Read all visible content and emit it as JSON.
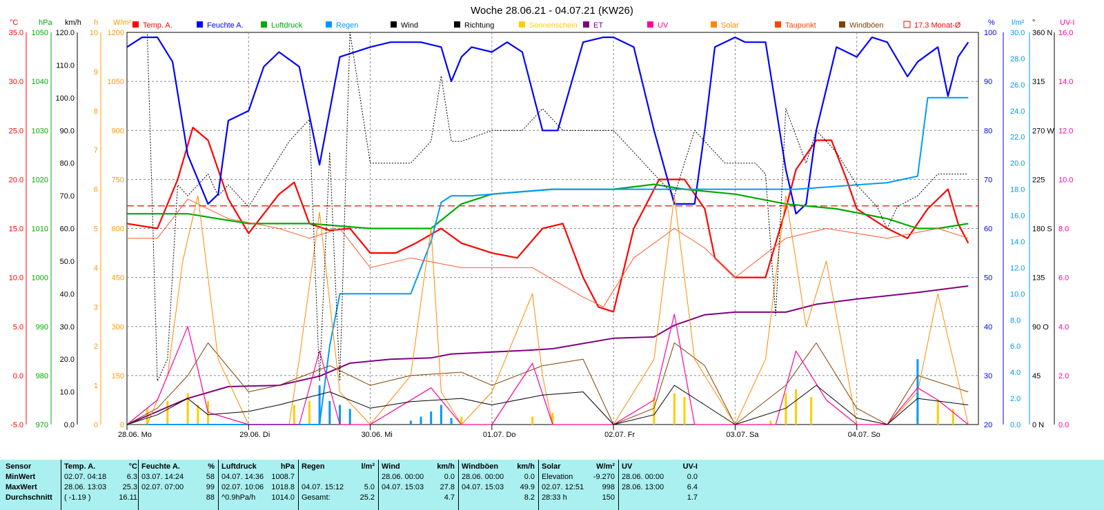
{
  "title": "Woche 28.06.21 - 04.07.21 (KW26)",
  "legend": [
    {
      "label": "Temp. A.",
      "color": "#ff0000"
    },
    {
      "label": "Feuchte A.",
      "color": "#0000ff"
    },
    {
      "label": "Luftdruck",
      "color": "#00aa00"
    },
    {
      "label": "Regen",
      "color": "#0099ff"
    },
    {
      "label": "Wind",
      "color": "#000000"
    },
    {
      "label": "Richtung",
      "color": "#000000"
    },
    {
      "label": "Sonnenschein",
      "color": "#ffcc00"
    },
    {
      "label": "ET",
      "color": "#800080"
    },
    {
      "label": "UV",
      "color": "#ff0099"
    },
    {
      "label": "Solar",
      "color": "#ff8800"
    },
    {
      "label": "Taupunkt",
      "color": "#ff4400"
    },
    {
      "label": "Windböen",
      "color": "#804000"
    },
    {
      "label": "17.3 Monat-Ø",
      "color": "#ff0000"
    }
  ],
  "axes": {
    "temp": {
      "unit": "°C",
      "ticks": [
        "35.0",
        "30.0",
        "25.0",
        "20.0",
        "15.0",
        "10.0",
        "5.0",
        "0.0",
        "-5.0"
      ],
      "color": "#ff0000"
    },
    "press": {
      "unit": "hPa",
      "ticks": [
        "1050",
        "1040",
        "1030",
        "1020",
        "1010",
        "1000",
        "990",
        "980",
        "970"
      ],
      "color": "#00aa00"
    },
    "wind": {
      "unit": "km/h",
      "ticks": [
        "120.0",
        "110.0",
        "100.0",
        "90.0",
        "80.0",
        "70.0",
        "60.0",
        "50.0",
        "40.0",
        "30.0",
        "20.0",
        "10.0",
        "0.0"
      ],
      "color": "#000000"
    },
    "sun": {
      "unit": "h",
      "ticks": [
        "10",
        "9",
        "8",
        "7",
        "6",
        "5",
        "4",
        "3",
        "2",
        "1",
        "0"
      ],
      "color": "#ff9900"
    },
    "solar": {
      "unit": "W/m²",
      "ticks": [
        "1200",
        "1050",
        "900",
        "750",
        "600",
        "450",
        "300",
        "150",
        "0"
      ],
      "color": "#ff9900"
    },
    "hum": {
      "unit": "%",
      "ticks": [
        "100",
        "90",
        "80",
        "70",
        "60",
        "50",
        "40",
        "30",
        "20"
      ],
      "color": "#0000ff"
    },
    "rain": {
      "unit": "l/m²",
      "ticks": [
        "30.0",
        "28.0",
        "26.0",
        "24.0",
        "22.0",
        "20.0",
        "18.0",
        "16.0",
        "14.0",
        "12.0",
        "10.0",
        "8.0",
        "6.0",
        "4.0",
        "2.0",
        "0.0"
      ],
      "color": "#0099ff"
    },
    "dir": {
      "unit": "°",
      "ticks": [
        "360 N",
        "315",
        "270 W",
        "225",
        "180 S",
        "135",
        "90 O",
        "45",
        "0 N"
      ],
      "color": "#000000"
    },
    "uv": {
      "unit": "UV-I",
      "ticks": [
        "16.0",
        "14.0",
        "12.0",
        "10.0",
        "8.0",
        "6.0",
        "4.0",
        "2.0",
        "0.0"
      ],
      "color": "#ff0099"
    }
  },
  "days": [
    "28.06.  Mo",
    "29.06.  Di",
    "30.06.  Mi",
    "01.07.  Do",
    "02.07.  Fr",
    "03.07.  Sa",
    "04.07.  So"
  ],
  "chart_data": {
    "type": "line",
    "title": "Woche 28.06.21 - 04.07.21 (KW26)",
    "x_unit": "hours since 28.06. 00:00",
    "series": [
      {
        "name": "Temp. A.",
        "unit": "°C",
        "x": [
          0,
          6,
          10,
          13,
          16,
          20,
          24,
          30,
          33,
          36,
          40,
          44,
          48,
          53,
          57,
          62,
          66,
          72,
          77,
          82,
          86,
          90,
          93,
          96,
          100,
          105,
          110,
          114,
          116,
          120,
          126,
          130,
          132,
          136,
          139,
          142,
          144,
          150,
          154,
          158,
          162,
          164,
          166
        ],
        "y": [
          15.5,
          15,
          20,
          25.3,
          24,
          18,
          14.5,
          18.5,
          19.7,
          15.5,
          14.8,
          15,
          12.5,
          12.5,
          13.5,
          15,
          13.5,
          12.5,
          12,
          15,
          15.5,
          10,
          7,
          6.5,
          15,
          20,
          20,
          17,
          12,
          10,
          10,
          17,
          21,
          24,
          24,
          20,
          17,
          15,
          14,
          17,
          19,
          15.5,
          13.5
        ]
      },
      {
        "name": "Feuchte A.",
        "unit": "%",
        "x": [
          0,
          3,
          6,
          9,
          12,
          16,
          18,
          20,
          24,
          27,
          30,
          34,
          36,
          38,
          42,
          48,
          52,
          58,
          62,
          64,
          66,
          68,
          72,
          75,
          78,
          82,
          85,
          90,
          94,
          96,
          100,
          104,
          108,
          112,
          114,
          116,
          120,
          122,
          126,
          130,
          132,
          134,
          136,
          140,
          144,
          147,
          150,
          154,
          156,
          160,
          162,
          164,
          166
        ],
        "y": [
          97,
          99,
          99,
          94,
          75,
          65,
          67,
          82,
          84,
          93,
          96,
          93,
          83,
          73,
          95,
          97,
          98,
          98,
          97,
          90,
          95,
          97,
          96,
          98,
          96,
          80,
          80,
          98,
          99,
          99,
          97,
          80,
          65,
          65,
          80,
          97,
          99,
          98,
          98,
          72,
          63,
          65,
          80,
          97,
          95,
          99,
          98,
          91,
          94,
          97,
          87,
          95,
          98
        ]
      },
      {
        "name": "Luftdruck",
        "unit": "hPa",
        "x": [
          0,
          12,
          24,
          36,
          48,
          60,
          66,
          72,
          84,
          96,
          104,
          110,
          120,
          130,
          140,
          150,
          156,
          160,
          166
        ],
        "y": [
          1013,
          1013,
          1011,
          1011,
          1010,
          1010,
          1015,
          1017,
          1018,
          1018,
          1019,
          1018,
          1017,
          1015,
          1014,
          1012,
          1010,
          1010,
          1011
        ]
      },
      {
        "name": "Regen",
        "unit": "l/m²",
        "x": [
          0,
          38,
          40,
          42,
          44,
          56,
          60,
          62,
          64,
          68,
          84,
          96,
          110,
          132,
          150,
          156,
          158,
          160,
          166
        ],
        "y": [
          0,
          0,
          6,
          10,
          10,
          10,
          14,
          17,
          17.5,
          17.5,
          18,
          18,
          18,
          18,
          18.5,
          19,
          25,
          25,
          25
        ]
      },
      {
        "name": "ET",
        "unit": "mm",
        "x": [
          0,
          12,
          20,
          30,
          38,
          44,
          52,
          60,
          64,
          80,
          84,
          90,
          96,
          104,
          108,
          114,
          120,
          130,
          136,
          144,
          156,
          166
        ],
        "y": [
          0,
          20,
          29,
          30,
          37,
          47,
          50,
          51,
          54,
          57,
          58,
          62,
          66,
          67,
          76,
          84,
          86,
          86,
          92,
          96,
          101,
          106
        ]
      },
      {
        "name": "Taupunkt",
        "unit": "°C",
        "x": [
          0,
          6,
          12,
          20,
          30,
          36,
          42,
          48,
          56,
          66,
          72,
          80,
          90,
          94,
          100,
          108,
          114,
          120,
          130,
          138,
          150,
          160,
          166
        ],
        "y": [
          14,
          14,
          18,
          16,
          15,
          14,
          15,
          11,
          12,
          11,
          11,
          11,
          8,
          7,
          12,
          15,
          13,
          10,
          14,
          15,
          14,
          15,
          14
        ]
      },
      {
        "name": "Windböen",
        "unit": "km/h",
        "x": [
          0,
          6,
          12,
          16,
          24,
          30,
          40,
          48,
          56,
          66,
          72,
          82,
          90,
          96,
          104,
          108,
          114,
          120,
          130,
          136,
          144,
          150,
          156,
          166
        ],
        "y": [
          0,
          5,
          15,
          25,
          10,
          12,
          18,
          12,
          15,
          16,
          12,
          18,
          20,
          0,
          5,
          25,
          18,
          0,
          12,
          25,
          5,
          0,
          15,
          10
        ]
      },
      {
        "name": "Solar",
        "unit": "W/m²",
        "x": [
          0,
          4,
          8,
          11,
          14,
          18,
          24,
          32,
          34,
          38,
          42,
          48,
          56,
          60,
          62,
          66,
          72,
          80,
          82,
          84,
          88,
          96,
          104,
          108,
          112,
          120,
          126,
          130,
          134,
          138,
          144,
          150,
          156,
          160,
          166
        ],
        "y": [
          0,
          0,
          150,
          500,
          700,
          200,
          0,
          0,
          200,
          650,
          100,
          0,
          150,
          600,
          100,
          0,
          100,
          400,
          150,
          0,
          0,
          0,
          200,
          700,
          200,
          0,
          200,
          700,
          300,
          500,
          0,
          0,
          100,
          400,
          0
        ]
      },
      {
        "name": "UV",
        "unit": "UV-I",
        "x": [
          0,
          6,
          12,
          16,
          24,
          34,
          38,
          42,
          48,
          60,
          66,
          72,
          80,
          84,
          88,
          96,
          104,
          108,
          112,
          120,
          128,
          132,
          138,
          144,
          150,
          156,
          160,
          166
        ],
        "y": [
          0,
          1,
          4,
          0.5,
          0,
          0,
          3,
          0,
          0,
          1.5,
          0,
          0,
          2.5,
          0,
          0,
          0,
          1,
          4.5,
          0,
          0,
          0,
          3,
          1,
          0,
          0,
          1.5,
          1,
          0
        ]
      },
      {
        "name": "Wind",
        "unit": "km/h",
        "x": [
          0,
          6,
          12,
          16,
          24,
          30,
          40,
          48,
          56,
          66,
          72,
          82,
          90,
          96,
          104,
          108,
          114,
          120,
          130,
          136,
          144,
          150,
          156,
          166
        ],
        "y": [
          0,
          3,
          8,
          3,
          4,
          6,
          10,
          5,
          7,
          8,
          6,
          9,
          10,
          0,
          3,
          12,
          6,
          0,
          5,
          12,
          2,
          0,
          8,
          6
        ]
      },
      {
        "name": "Richtung",
        "unit": "°",
        "x": [
          0,
          4,
          6,
          8,
          10,
          12,
          16,
          18,
          20,
          24,
          28,
          32,
          36,
          38,
          40,
          42,
          44,
          48,
          56,
          60,
          62,
          64,
          66,
          72,
          78,
          82,
          86,
          90,
          96,
          106,
          108,
          112,
          114,
          116,
          118,
          124,
          126,
          128,
          130,
          134,
          136,
          140,
          144,
          148,
          150,
          152,
          156,
          158,
          160,
          164,
          166
        ],
        "y": [
          360,
          360,
          40,
          60,
          220,
          210,
          230,
          210,
          220,
          200,
          230,
          260,
          280,
          40,
          250,
          40,
          360,
          240,
          240,
          260,
          320,
          260,
          260,
          270,
          270,
          290,
          270,
          270,
          270,
          220,
          210,
          270,
          260,
          250,
          240,
          240,
          230,
          100,
          290,
          240,
          270,
          250,
          220,
          200,
          180,
          200,
          210,
          220,
          230,
          230,
          230
        ]
      }
    ],
    "sunshine_bars": [
      {
        "x": 4,
        "h": 0.4
      },
      {
        "x": 8,
        "h": 0.6
      },
      {
        "x": 12,
        "h": 0.8
      },
      {
        "x": 14,
        "h": 0.5
      },
      {
        "x": 16,
        "h": 0.6
      },
      {
        "x": 33,
        "h": 0.5
      },
      {
        "x": 36,
        "h": 0.6
      },
      {
        "x": 38,
        "h": 0.8
      },
      {
        "x": 40,
        "h": 0.4
      },
      {
        "x": 58,
        "h": 0.1
      },
      {
        "x": 62,
        "h": 0.2
      },
      {
        "x": 66,
        "h": 0.2
      },
      {
        "x": 80,
        "h": 0.2
      },
      {
        "x": 84,
        "h": 0.3
      },
      {
        "x": 104,
        "h": 0.7
      },
      {
        "x": 108,
        "h": 0.8
      },
      {
        "x": 110,
        "h": 0.7
      },
      {
        "x": 127,
        "h": 0.1
      },
      {
        "x": 130,
        "h": 0.8
      },
      {
        "x": 132,
        "h": 0.9
      },
      {
        "x": 135,
        "h": 0.7
      },
      {
        "x": 156,
        "h": 0.4
      },
      {
        "x": 160,
        "h": 0.6
      },
      {
        "x": 163,
        "h": 0.4
      }
    ],
    "rain_bars": [
      {
        "x": 38,
        "h": 3.0
      },
      {
        "x": 40,
        "h": 1.8
      },
      {
        "x": 42,
        "h": 1.5
      },
      {
        "x": 44,
        "h": 1.2
      },
      {
        "x": 56,
        "h": 0.3
      },
      {
        "x": 58,
        "h": 0.6
      },
      {
        "x": 60,
        "h": 1.0
      },
      {
        "x": 62,
        "h": 1.5
      },
      {
        "x": 64,
        "h": 0.5
      },
      {
        "x": 156,
        "h": 5.0
      }
    ],
    "monthly_avg_temp": 17.3
  },
  "stats": {
    "labels": {
      "sensor": "Sensor",
      "min": "MinWert",
      "max": "MaxWert",
      "avg": "Durchschnitt"
    },
    "temp": {
      "head": "Temp. A.",
      "unit": "°C",
      "min_t": "02.07.  04:18",
      "min_v": "6.3",
      "max_t": "28.06.  13:03",
      "max_v": "25.3",
      "avg_t": "( -1.19 )",
      "avg_v": "16.11"
    },
    "hum": {
      "head": "Feuchte A.",
      "unit": "%",
      "min_t": "03.07.  14:24",
      "min_v": "58",
      "max_t": "02.07.  07:00",
      "max_v": "99",
      "avg_t": "",
      "avg_v": "88"
    },
    "press": {
      "head": "Luftdruck",
      "unit": "hPa",
      "min_t": "04.07.  14:36",
      "min_v": "1008.7",
      "max_t": "02.07.  10:06",
      "max_v": "1018.8",
      "avg_t": "^0.9hPa/h",
      "avg_v": "1014.0"
    },
    "rain": {
      "head": "Regen",
      "unit": "l/m²",
      "min_t": "",
      "min_v": "",
      "max_t": "04.07.  15:12",
      "max_v": "5.0",
      "avg_t": "Gesamt:",
      "avg_v": "25.2"
    },
    "wind": {
      "head": "Wind",
      "unit": "km/h",
      "min_t": "28.06.  00:00",
      "min_v": "0.0",
      "max_t": "04.07.  15:03",
      "max_v": "27.8",
      "avg_t": "",
      "avg_v": "4.7"
    },
    "gust": {
      "head": "Windböen",
      "unit": "km/h",
      "min_t": "28.06.  00:00",
      "min_v": "0.0",
      "max_t": "04.07.  15:03",
      "max_v": "49.9",
      "avg_t": "",
      "avg_v": "8.2"
    },
    "solar": {
      "head": "Solar",
      "unit": "W/m²",
      "min_t": "Elevation",
      "min_v": "-9.270",
      "max_t": "02.07.  12:51",
      "max_v": "998",
      "avg_t": "28:33 h",
      "avg_v": "150"
    },
    "uv": {
      "head": "UV",
      "unit": "UV-I",
      "min_t": "28.06.  00:00",
      "min_v": "0.0",
      "max_t": "28.06.  13:00",
      "max_v": "6.4",
      "avg_t": "",
      "avg_v": "1.7"
    }
  }
}
